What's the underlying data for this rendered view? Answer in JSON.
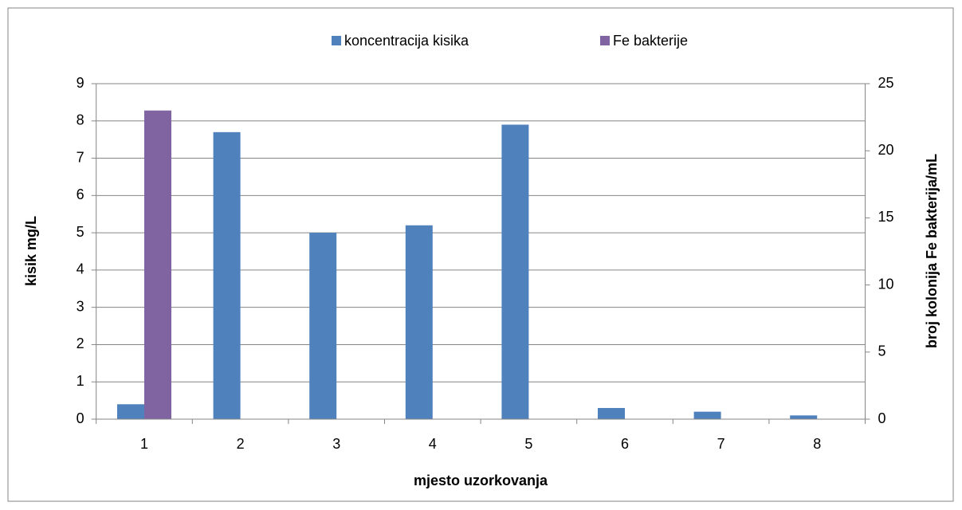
{
  "chart_data": {
    "type": "bar",
    "xlabel": "mjesto uzorkovanja",
    "ylabel": "kisik mg/L",
    "y2label": "broj kolonija Fe bakterija/mL",
    "categories": [
      "1",
      "2",
      "3",
      "4",
      "5",
      "6",
      "7",
      "8"
    ],
    "series": [
      {
        "name": "koncentracija kisika",
        "color": "#4f81bd",
        "values": [
          0.4,
          7.7,
          5.0,
          5.2,
          7.9,
          0.3,
          0.2,
          0.1
        ]
      },
      {
        "name": "Fe bakterije",
        "color": "#8064a2",
        "axis": "y2",
        "values": [
          23,
          0,
          0,
          0,
          0,
          0,
          0,
          0
        ]
      }
    ],
    "ylim": [
      0,
      9
    ],
    "yticks": [
      0,
      1,
      2,
      3,
      4,
      5,
      6,
      7,
      8,
      9
    ],
    "y2lim": [
      0,
      25
    ],
    "y2ticks": [
      0,
      5,
      10,
      15,
      20,
      25
    ],
    "grid": true,
    "legend": "top"
  }
}
